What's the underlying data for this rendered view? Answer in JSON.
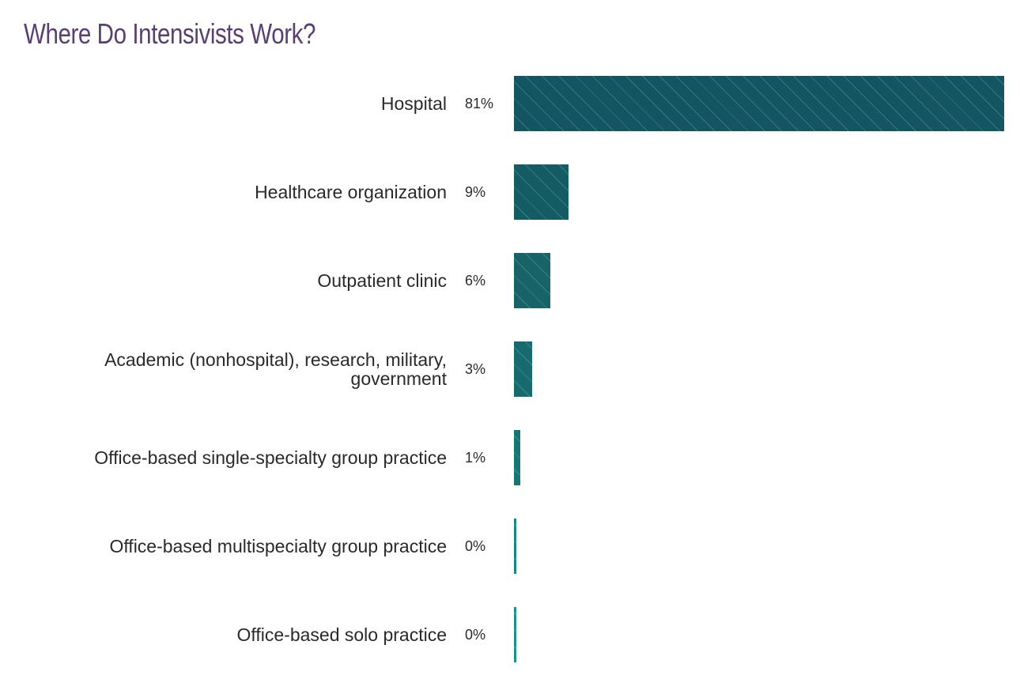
{
  "title": "Where Do Intensivists Work?",
  "chart_data": {
    "type": "bar",
    "orientation": "horizontal",
    "title": "Where Do Intensivists Work?",
    "categories": [
      "Hospital",
      "Healthcare organization",
      "Outpatient clinic",
      "Academic (nonhospital), research, military, government",
      "Office-based single-specialty group practice",
      "Office-based multispecialty group practice",
      "Office-based solo practice"
    ],
    "values": [
      81,
      9,
      6,
      3,
      1,
      0,
      0
    ],
    "value_labels": [
      "81%",
      "9%",
      "6%",
      "3%",
      "1%",
      "0%",
      "0%"
    ],
    "xlabel": "",
    "ylabel": "",
    "grid": false,
    "legend": "none",
    "colors": [
      "#135560",
      "#145c64",
      "#166468",
      "#176b6e",
      "#187575",
      "#1a8585",
      "#1c9090"
    ]
  },
  "rows": [
    {
      "label": "Hospital",
      "value": "81%"
    },
    {
      "label": "Healthcare organization",
      "value": "9%"
    },
    {
      "label": "Outpatient clinic",
      "value": "6%"
    },
    {
      "label": "Academic (nonhospital), research, military, government",
      "value": "3%"
    },
    {
      "label": "Office-based single-specialty group practice",
      "value": "1%"
    },
    {
      "label": "Office-based multispecialty group practice",
      "value": "0%"
    },
    {
      "label": "Office-based solo practice",
      "value": "0%"
    }
  ]
}
